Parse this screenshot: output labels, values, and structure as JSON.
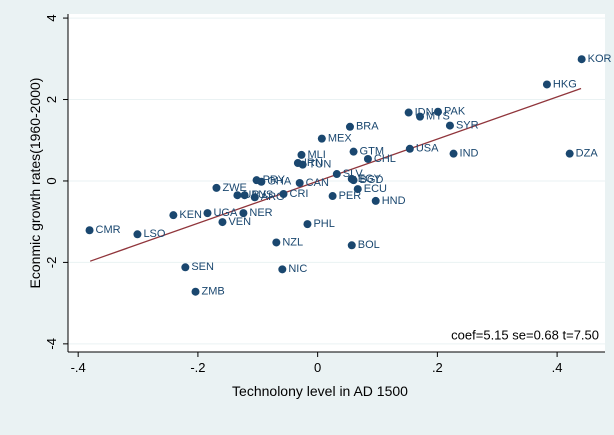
{
  "chart_data": {
    "type": "scatter",
    "x_label": "Technolony level in AD 1500",
    "y_label": "Econmic growth rates(1960-2000)",
    "annotation": "coef=5.15  se=0.68  t=7.50",
    "point_labels": [
      "KOR",
      "HKG",
      "DZA",
      "IND",
      "SYR",
      "PAK",
      "IDN",
      "MYS",
      "USA",
      "BRA",
      "MEX",
      "GTM",
      "CHL",
      "MLI",
      "IRN",
      "TUN",
      "SLV",
      "EGY",
      "BGD",
      "ECU",
      "PER",
      "HND",
      "CAN",
      "PRY",
      "GHA",
      "ZWE",
      "CRI",
      "URY",
      "AUS",
      "ARG",
      "KEN",
      "UGA",
      "NER",
      "VEN",
      "CMR",
      "LSO",
      "PHL",
      "NZL",
      "BOL",
      "SEN",
      "NIC",
      "ZMB"
    ],
    "x": [
      0.441,
      0.383,
      0.421,
      0.227,
      0.221,
      0.201,
      0.152,
      0.171,
      0.154,
      0.054,
      0.007,
      0.06,
      0.084,
      -0.027,
      -0.033,
      -0.025,
      0.032,
      0.057,
      0.06,
      0.067,
      0.025,
      0.097,
      -0.03,
      -0.102,
      -0.094,
      -0.169,
      -0.057,
      -0.134,
      -0.122,
      -0.105,
      -0.241,
      -0.184,
      -0.124,
      -0.159,
      -0.381,
      -0.301,
      -0.017,
      -0.069,
      0.057,
      -0.221,
      -0.059,
      -0.204
    ],
    "values": [
      2.99,
      2.37,
      0.67,
      0.67,
      1.36,
      1.7,
      1.68,
      1.58,
      0.79,
      1.33,
      1.04,
      0.72,
      0.54,
      0.64,
      0.44,
      0.4,
      0.17,
      0.05,
      0.02,
      -0.2,
      -0.37,
      -0.49,
      -0.05,
      0.02,
      -0.02,
      -0.17,
      -0.32,
      -0.35,
      -0.35,
      -0.4,
      -0.84,
      -0.79,
      -0.79,
      -1.01,
      -1.21,
      -1.31,
      -1.06,
      -1.51,
      -1.58,
      -2.12,
      -2.17,
      -2.72
    ],
    "color": "#1a476f",
    "fit_line": {
      "x": [
        -0.38,
        0.44
      ],
      "values": [
        -1.97,
        2.27
      ],
      "color": "#90353b"
    },
    "xlim": [
      -0.417,
      0.48
    ],
    "ylim": [
      -4.2,
      4.1
    ],
    "xticks": [
      {
        "value": -0.4,
        "label": "-.4"
      },
      {
        "value": -0.2,
        "label": "-.2"
      },
      0,
      {
        "value": 0.2,
        "label": ".2"
      },
      {
        "value": 0.4,
        "label": ".4"
      }
    ],
    "yticks": [
      -4,
      -2,
      0,
      2,
      4
    ],
    "grid": true
  }
}
